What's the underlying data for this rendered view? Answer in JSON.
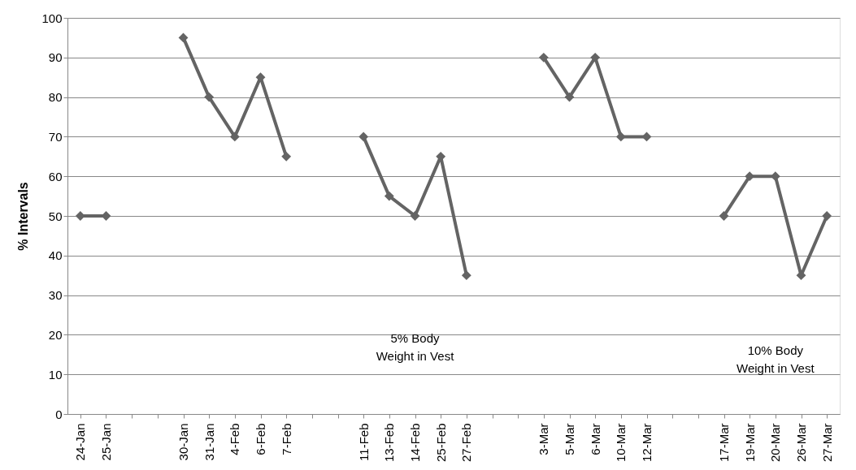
{
  "chart_data": {
    "type": "line",
    "ylabel": "% Intervals",
    "categories": [
      "24-Jan",
      "25-Jan",
      null,
      null,
      "30-Jan",
      "31-Jan",
      "4-Feb",
      "6-Feb",
      "7-Feb",
      null,
      null,
      "11-Feb",
      "13-Feb",
      "14-Feb",
      "25-Feb",
      "27-Feb",
      null,
      null,
      "3-Mar",
      "5-Mar",
      "6-Mar",
      "10-Mar",
      "12-Mar",
      null,
      null,
      "17-Mar",
      "19-Mar",
      "20-Mar",
      "26-Mar",
      "27-Mar"
    ],
    "series": [
      {
        "color": "#646464",
        "values": [
          50,
          50,
          null,
          null,
          95,
          80,
          70,
          85,
          65,
          null,
          null,
          70,
          55,
          50,
          65,
          35,
          null,
          null,
          90,
          80,
          90,
          70,
          70,
          null,
          null,
          50,
          60,
          60,
          35,
          50
        ]
      }
    ],
    "ylim": [
      0,
      100
    ],
    "yticks": [
      0,
      10,
      20,
      30,
      40,
      50,
      60,
      70,
      80,
      90,
      100
    ],
    "grid": "y",
    "marker": "diamond",
    "line_style": "solid",
    "legend": false,
    "annotations": [
      "5% Body Weight in Vest",
      "10% Body Weight in Vest"
    ]
  }
}
